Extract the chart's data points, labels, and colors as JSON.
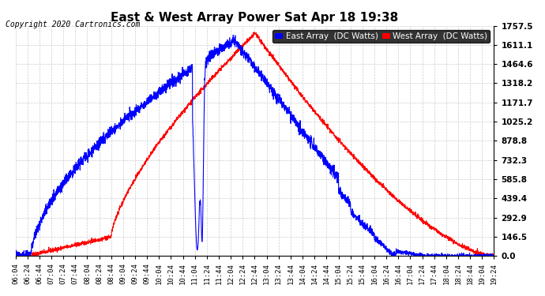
{
  "title": "East & West Array Power Sat Apr 18 19:38",
  "copyright": "Copyright 2020 Cartronics.com",
  "bg_color": "#ffffff",
  "plot_bg_color": "#ffffff",
  "grid_color": "#cccccc",
  "east_color": "#0000ff",
  "west_color": "#ff0000",
  "east_label": "East Array  (DC Watts)",
  "west_label": "West Array  (DC Watts)",
  "yticks": [
    0.0,
    146.5,
    292.9,
    439.4,
    585.8,
    732.3,
    878.8,
    1025.2,
    1171.7,
    1318.2,
    1464.6,
    1611.1,
    1757.5
  ],
  "ymax": 1757.5,
  "ymin": 0.0,
  "x_start_hour": 6,
  "x_start_min": 4,
  "x_end_hour": 19,
  "x_end_min": 24,
  "x_step_min": 20
}
